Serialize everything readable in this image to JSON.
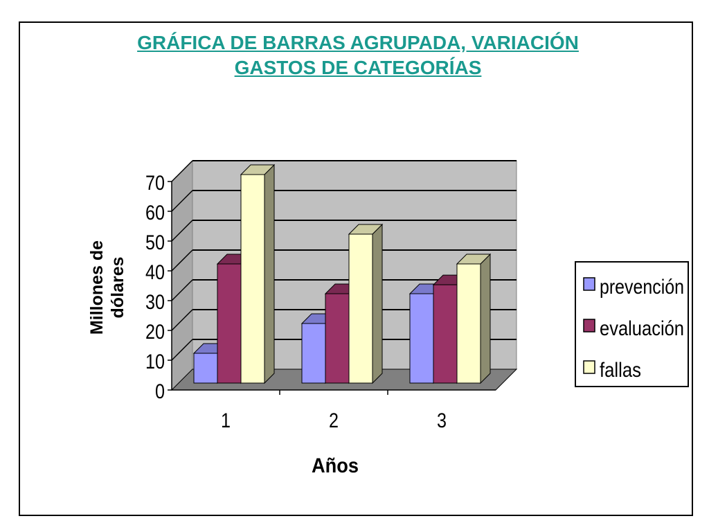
{
  "title_line1": "GRÁFICA DE BARRAS AGRUPADA, VARIACIÓN",
  "title_line2": "GASTOS DE CATEGORÍAS",
  "colors": {
    "title": "#1a9a8f",
    "wall": "#c0c0c0",
    "floor": "#808080"
  },
  "chart_data": {
    "type": "bar",
    "categories": [
      "1",
      "2",
      "3"
    ],
    "series": [
      {
        "name": "prevención",
        "values": [
          10,
          20,
          30
        ],
        "color": "#9999ff"
      },
      {
        "name": "evaluación",
        "values": [
          40,
          30,
          33
        ],
        "color": "#993366"
      },
      {
        "name": "fallas",
        "values": [
          70,
          50,
          40
        ],
        "color": "#ffffcc"
      }
    ],
    "xlabel": "Años",
    "ylabel_line1": "Millones de",
    "ylabel_line2": "dólares",
    "ylim": [
      0,
      70
    ],
    "yticks": [
      "0",
      "10",
      "20",
      "30",
      "40",
      "50",
      "60",
      "70"
    ],
    "grid": true,
    "legend": "right"
  }
}
